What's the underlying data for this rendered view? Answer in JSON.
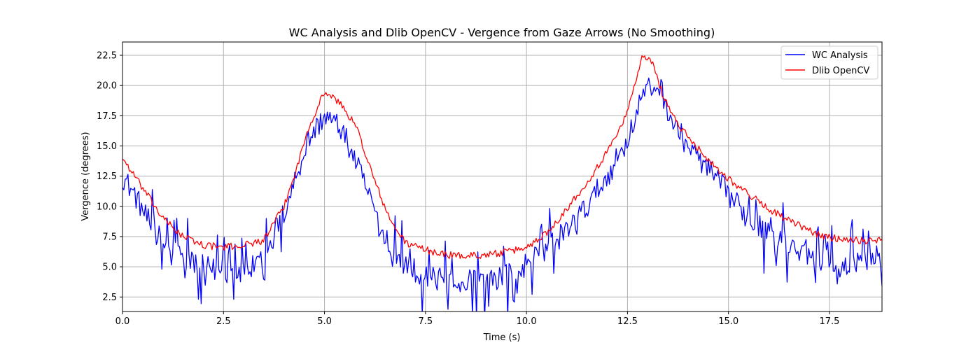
{
  "chart_data": {
    "type": "line",
    "title": "WC Analysis and Dlib OpenCV - Vergence from Gaze Arrows (No Smoothing)",
    "xlabel": "Time (s)",
    "ylabel": "Vergence (degrees)",
    "xlim": [
      0,
      18.8
    ],
    "ylim": [
      1.3,
      23.6
    ],
    "xticks": [
      0,
      2.5,
      5,
      7.5,
      10,
      12.5,
      15,
      17.5
    ],
    "xtick_labels": [
      "0.0",
      "2.5",
      "5.0",
      "7.5",
      "10.0",
      "12.5",
      "15.0",
      "17.5"
    ],
    "yticks": [
      2.5,
      5,
      7.5,
      10,
      12.5,
      15,
      17.5,
      20,
      22.5
    ],
    "ytick_labels": [
      "2.5",
      "5.0",
      "7.5",
      "10.0",
      "12.5",
      "15.0",
      "17.5",
      "20.0",
      "22.5"
    ],
    "grid": true,
    "legend": "top-right",
    "series": [
      {
        "name": "WC Analysis",
        "color": "#0000ff",
        "noise": 1.0,
        "x": [
          0,
          0.3,
          0.6,
          1.0,
          1.5,
          2.0,
          2.5,
          3.0,
          3.5,
          4.0,
          4.3,
          4.6,
          5.0,
          5.4,
          5.8,
          6.2,
          6.6,
          7.0,
          7.5,
          8.0,
          8.5,
          9.0,
          9.5,
          10.0,
          10.5,
          11.0,
          11.5,
          12.0,
          12.5,
          12.9,
          13.3,
          13.6,
          14.0,
          14.5,
          15.0,
          15.5,
          16.0,
          16.5,
          17.0,
          17.5,
          18.0,
          18.8
        ],
        "y": [
          12.5,
          11.0,
          9.0,
          7.0,
          5.8,
          5.0,
          4.5,
          4.5,
          5.5,
          9.5,
          12.5,
          15.5,
          17.5,
          16.5,
          13.5,
          10.0,
          7.0,
          5.2,
          4.2,
          3.8,
          3.8,
          3.8,
          4.2,
          5.2,
          6.5,
          8.0,
          10.0,
          12.5,
          15.5,
          19.5,
          20.0,
          17.0,
          15.0,
          13.0,
          11.0,
          9.0,
          8.0,
          7.0,
          6.0,
          5.5,
          5.5,
          5.8
        ]
      },
      {
        "name": "Dlib OpenCV",
        "color": "#ff0000",
        "noise": 0.3,
        "x": [
          0,
          0.3,
          0.6,
          1.0,
          1.5,
          2.0,
          2.5,
          3.0,
          3.5,
          4.0,
          4.3,
          4.6,
          5.0,
          5.4,
          5.8,
          6.2,
          6.6,
          7.0,
          7.5,
          8.0,
          8.5,
          9.0,
          9.5,
          10.0,
          10.5,
          11.0,
          11.5,
          12.0,
          12.5,
          12.85,
          13.1,
          13.4,
          13.8,
          14.2,
          14.6,
          15.0,
          15.5,
          16.0,
          16.5,
          17.0,
          17.2,
          17.5,
          18.0,
          18.5,
          18.8
        ],
        "y": [
          14.0,
          12.5,
          11.0,
          9.0,
          7.5,
          6.8,
          6.6,
          6.8,
          7.2,
          10.0,
          13.0,
          16.5,
          19.5,
          18.5,
          16.5,
          12.5,
          9.0,
          7.0,
          6.4,
          6.0,
          5.9,
          6.0,
          6.2,
          6.6,
          7.8,
          9.8,
          12.0,
          14.5,
          17.8,
          22.3,
          22.0,
          19.0,
          16.5,
          15.0,
          13.5,
          12.3,
          11.0,
          9.8,
          8.8,
          8.0,
          7.7,
          7.4,
          7.3,
          7.1,
          7.4
        ]
      }
    ]
  }
}
